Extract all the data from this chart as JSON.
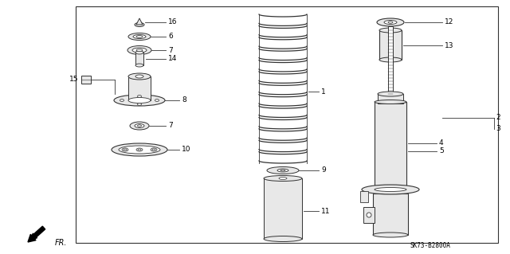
{
  "bg_color": "#ffffff",
  "line_color": "#333333",
  "part_fill": "#e8e8e8",
  "part_edge": "#333333",
  "diagram_code": "SK73-B2800A",
  "fr_label": "FR.",
  "font_size": 6.5,
  "border": [
    95,
    8,
    625,
    305
  ]
}
